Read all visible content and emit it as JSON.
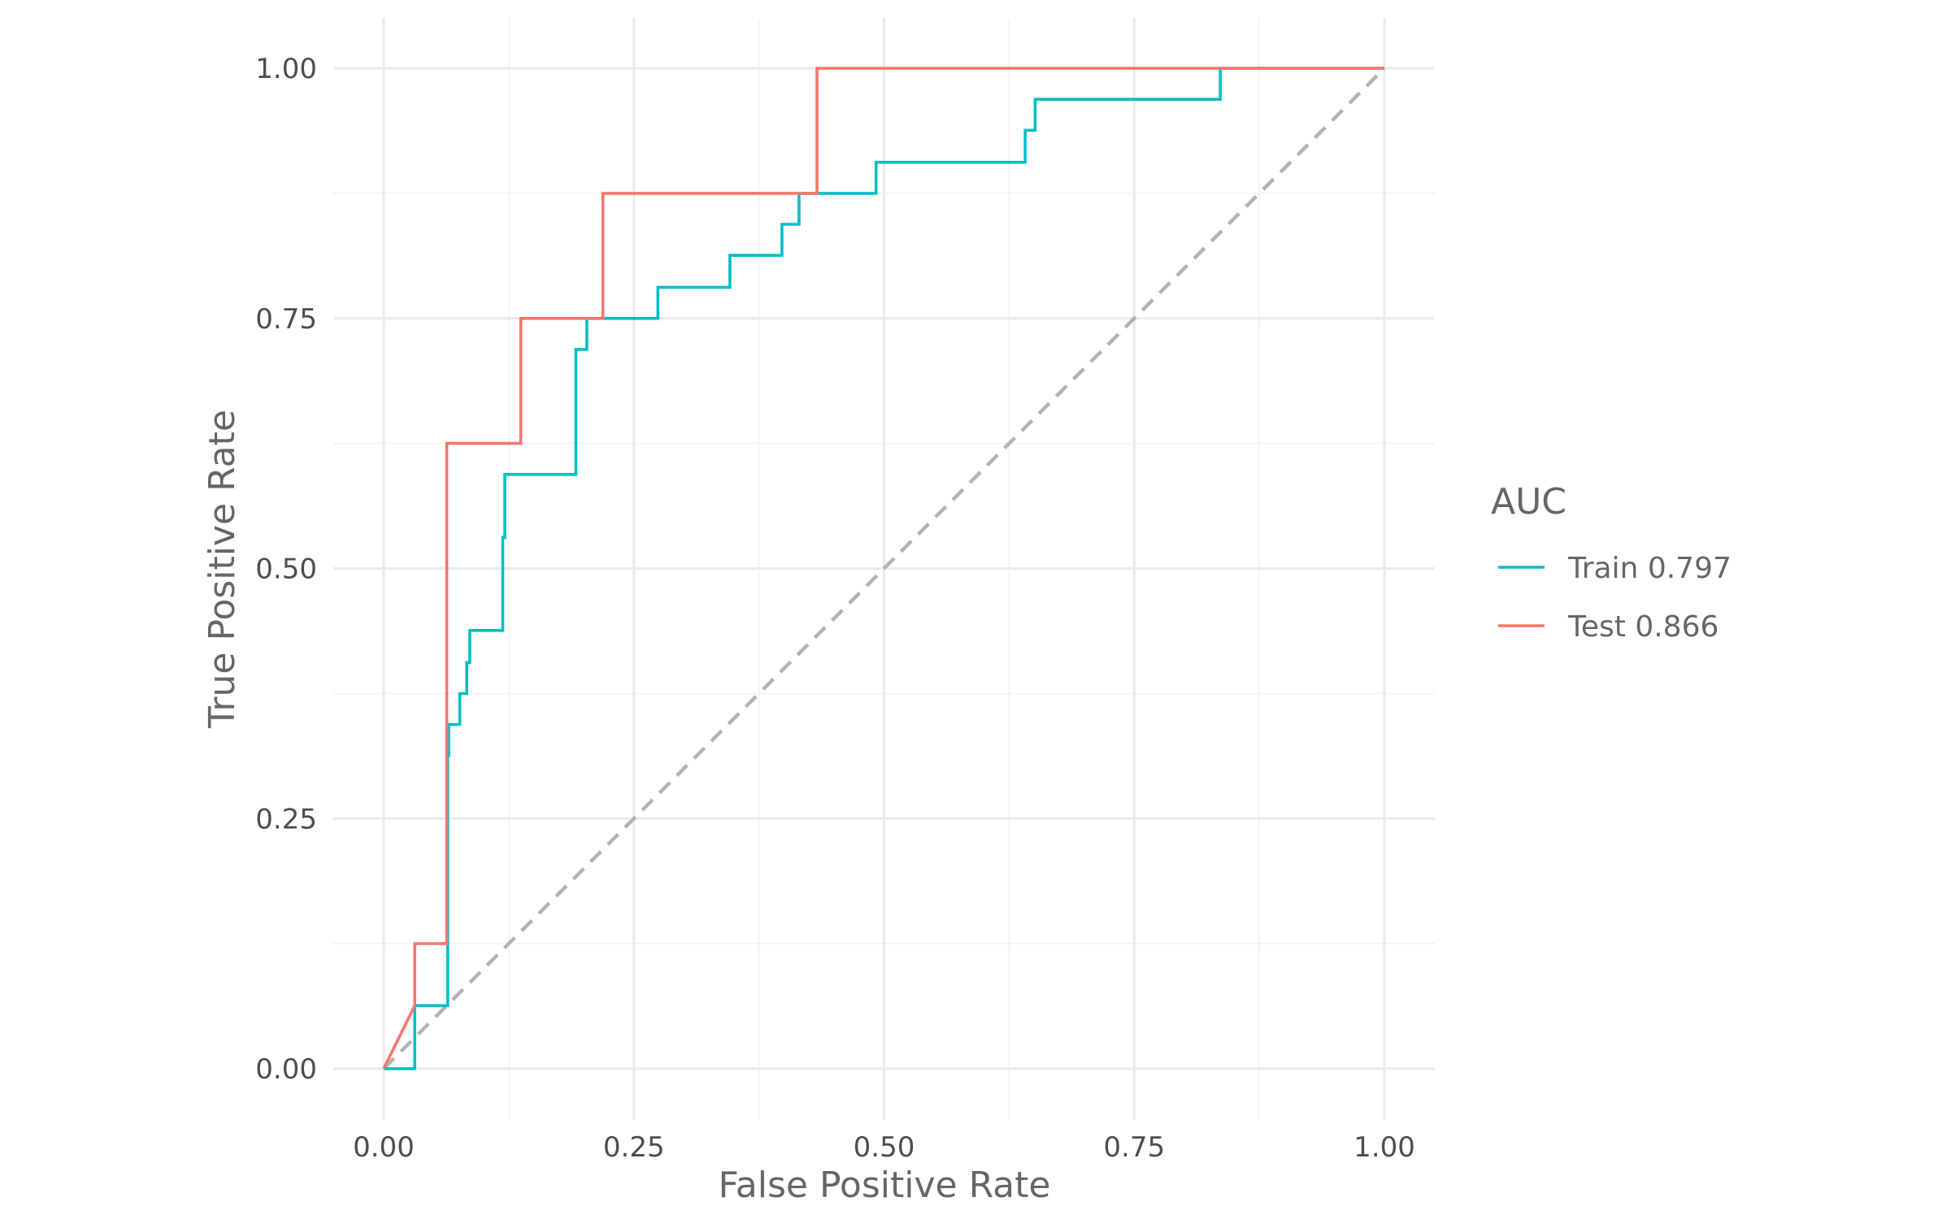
{
  "chart_data": {
    "type": "line",
    "title": "",
    "xlabel": "False Positive Rate",
    "ylabel": "True Positive Rate",
    "xlim": [
      0,
      1
    ],
    "ylim": [
      0,
      1
    ],
    "x_ticks": [
      "0.00",
      "0.25",
      "0.50",
      "0.75",
      "1.00"
    ],
    "y_ticks": [
      "0.00",
      "0.25",
      "0.50",
      "0.75",
      "1.00"
    ],
    "grid": true,
    "legend": {
      "title": "AUC",
      "placement": "right"
    },
    "reference_line": {
      "from": [
        0,
        0
      ],
      "to": [
        1,
        1
      ],
      "style": "dashed",
      "color": "#b3b3b3"
    },
    "series": [
      {
        "name": "Train 0.797",
        "color": "#00bfc4",
        "step": true,
        "x": [
          0,
          0.031,
          0.031,
          0.064,
          0.064,
          0.065,
          0.065,
          0.067,
          0.067,
          0.076,
          0.076,
          0.083,
          0.083,
          0.086,
          0.086,
          0.119,
          0.119,
          0.121,
          0.121,
          0.192,
          0.192,
          0.203,
          0.203,
          0.274,
          0.274,
          0.346,
          0.346,
          0.398,
          0.398,
          0.415,
          0.415,
          0.492,
          0.492,
          0.641,
          0.641,
          0.651,
          0.651,
          0.836,
          0.836,
          1
        ],
        "y": [
          0,
          0,
          0.063,
          0.063,
          0.313,
          0.313,
          0.344,
          0.344,
          0.344,
          0.344,
          0.375,
          0.375,
          0.406,
          0.406,
          0.438,
          0.438,
          0.531,
          0.531,
          0.594,
          0.594,
          0.719,
          0.719,
          0.75,
          0.75,
          0.781,
          0.781,
          0.813,
          0.813,
          0.844,
          0.844,
          0.875,
          0.875,
          0.906,
          0.906,
          0.938,
          0.938,
          0.969,
          0.969,
          1.0,
          1.0
        ]
      },
      {
        "name": "Test 0.866",
        "color": "#f8766d",
        "step": true,
        "x": [
          0,
          0.031,
          0.031,
          0.063,
          0.063,
          0.137,
          0.137,
          0.219,
          0.219,
          0.433,
          0.433,
          1
        ],
        "y": [
          0,
          0.063,
          0.125,
          0.125,
          0.625,
          0.625,
          0.75,
          0.75,
          0.875,
          0.875,
          1.0,
          1.0
        ]
      }
    ]
  }
}
